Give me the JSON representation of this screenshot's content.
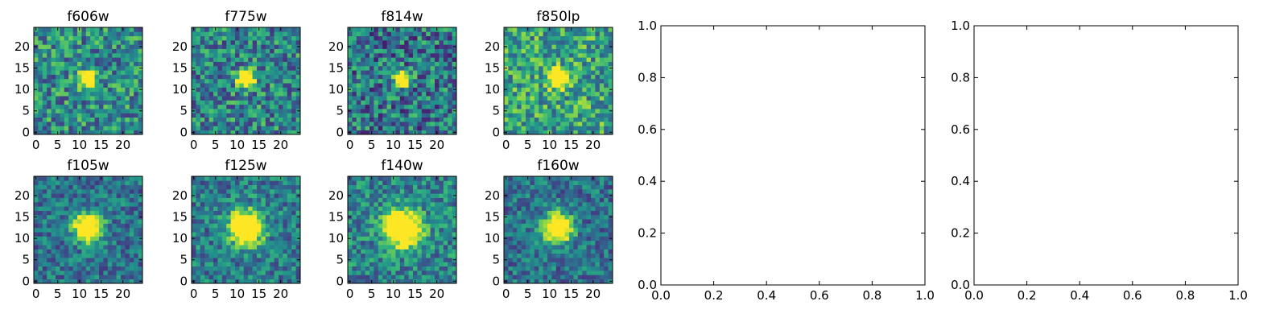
{
  "figure": {
    "background": "#ffffff",
    "colormap": [
      "#440154",
      "#443983",
      "#31688e",
      "#21918c",
      "#35b779",
      "#90d743",
      "#fde725"
    ]
  },
  "chart_data": [
    {
      "type": "heatmap",
      "title": "f606w",
      "x_ticks": [
        "0",
        "5",
        "10",
        "15",
        "20"
      ],
      "y_ticks": [
        "0",
        "5",
        "10",
        "15",
        "20"
      ],
      "xlim": [
        -0.5,
        24.5
      ],
      "ylim": [
        -0.5,
        24.5
      ],
      "grid_size": 25,
      "source_center": [
        12,
        12.5
      ],
      "source_sigma": 1.3,
      "background_level": 0.48,
      "noise_seed": 11,
      "noise_amp": 0.3
    },
    {
      "type": "heatmap",
      "title": "f775w",
      "x_ticks": [
        "0",
        "5",
        "10",
        "15",
        "20"
      ],
      "y_ticks": [
        "0",
        "5",
        "10",
        "15",
        "20"
      ],
      "xlim": [
        -0.5,
        24.5
      ],
      "ylim": [
        -0.5,
        24.5
      ],
      "grid_size": 25,
      "source_center": [
        12,
        12.5
      ],
      "source_sigma": 1.4,
      "background_level": 0.45,
      "noise_seed": 23,
      "noise_amp": 0.3
    },
    {
      "type": "heatmap",
      "title": "f814w",
      "x_ticks": [
        "0",
        "5",
        "10",
        "15",
        "20"
      ],
      "y_ticks": [
        "0",
        "5",
        "10",
        "15",
        "20"
      ],
      "xlim": [
        -0.5,
        24.5
      ],
      "ylim": [
        -0.5,
        24.5
      ],
      "grid_size": 25,
      "source_center": [
        12,
        12.5
      ],
      "source_sigma": 1.2,
      "background_level": 0.4,
      "noise_seed": 37,
      "noise_amp": 0.32
    },
    {
      "type": "heatmap",
      "title": "f850lp",
      "x_ticks": [
        "0",
        "5",
        "10",
        "15",
        "20"
      ],
      "y_ticks": [
        "0",
        "5",
        "10",
        "15",
        "20"
      ],
      "xlim": [
        -0.5,
        24.5
      ],
      "ylim": [
        -0.5,
        24.5
      ],
      "grid_size": 25,
      "source_center": [
        12,
        12.5
      ],
      "source_sigma": 1.4,
      "background_level": 0.58,
      "noise_seed": 53,
      "noise_amp": 0.3
    },
    {
      "type": "line",
      "title": "",
      "x_ticks": [
        "0.0",
        "0.2",
        "0.4",
        "0.6",
        "0.8",
        "1.0"
      ],
      "y_ticks": [
        "0.0",
        "0.2",
        "0.4",
        "0.6",
        "0.8",
        "1.0"
      ],
      "xlim": [
        0,
        1
      ],
      "ylim": [
        0,
        1
      ],
      "series": []
    },
    {
      "type": "line",
      "title": "",
      "x_ticks": [
        "0.0",
        "0.2",
        "0.4",
        "0.6",
        "0.8",
        "1.0"
      ],
      "y_ticks": [
        "0.0",
        "0.2",
        "0.4",
        "0.6",
        "0.8",
        "1.0"
      ],
      "xlim": [
        0,
        1
      ],
      "ylim": [
        0,
        1
      ],
      "series": []
    },
    {
      "type": "heatmap",
      "title": "f105w",
      "x_ticks": [
        "0",
        "5",
        "10",
        "15",
        "20"
      ],
      "y_ticks": [
        "0",
        "5",
        "10",
        "15",
        "20"
      ],
      "xlim": [
        -0.5,
        24.5
      ],
      "ylim": [
        -0.5,
        24.5
      ],
      "grid_size": 25,
      "source_center": [
        12,
        12.5
      ],
      "source_sigma": 2.2,
      "background_level": 0.38,
      "noise_seed": 71,
      "noise_amp": 0.22
    },
    {
      "type": "heatmap",
      "title": "f125w",
      "x_ticks": [
        "0",
        "5",
        "10",
        "15",
        "20"
      ],
      "y_ticks": [
        "0",
        "5",
        "10",
        "15",
        "20"
      ],
      "xlim": [
        -0.5,
        24.5
      ],
      "ylim": [
        -0.5,
        24.5
      ],
      "grid_size": 25,
      "source_center": [
        12,
        12.5
      ],
      "source_sigma": 2.6,
      "background_level": 0.42,
      "noise_seed": 89,
      "noise_amp": 0.24
    },
    {
      "type": "heatmap",
      "title": "f140w",
      "x_ticks": [
        "0",
        "5",
        "10",
        "15",
        "20"
      ],
      "y_ticks": [
        "0",
        "5",
        "10",
        "15",
        "20"
      ],
      "xlim": [
        -0.5,
        24.5
      ],
      "ylim": [
        -0.5,
        24.5
      ],
      "grid_size": 25,
      "source_center": [
        12,
        12.5
      ],
      "source_sigma": 2.8,
      "background_level": 0.45,
      "noise_seed": 97,
      "noise_amp": 0.24
    },
    {
      "type": "heatmap",
      "title": "f160w",
      "x_ticks": [
        "0",
        "5",
        "10",
        "15",
        "20"
      ],
      "y_ticks": [
        "0",
        "5",
        "10",
        "15",
        "20"
      ],
      "xlim": [
        -0.5,
        24.5
      ],
      "ylim": [
        -0.5,
        24.5
      ],
      "grid_size": 25,
      "source_center": [
        12,
        12.5
      ],
      "source_sigma": 2.2,
      "background_level": 0.38,
      "noise_seed": 101,
      "noise_amp": 0.22
    }
  ]
}
